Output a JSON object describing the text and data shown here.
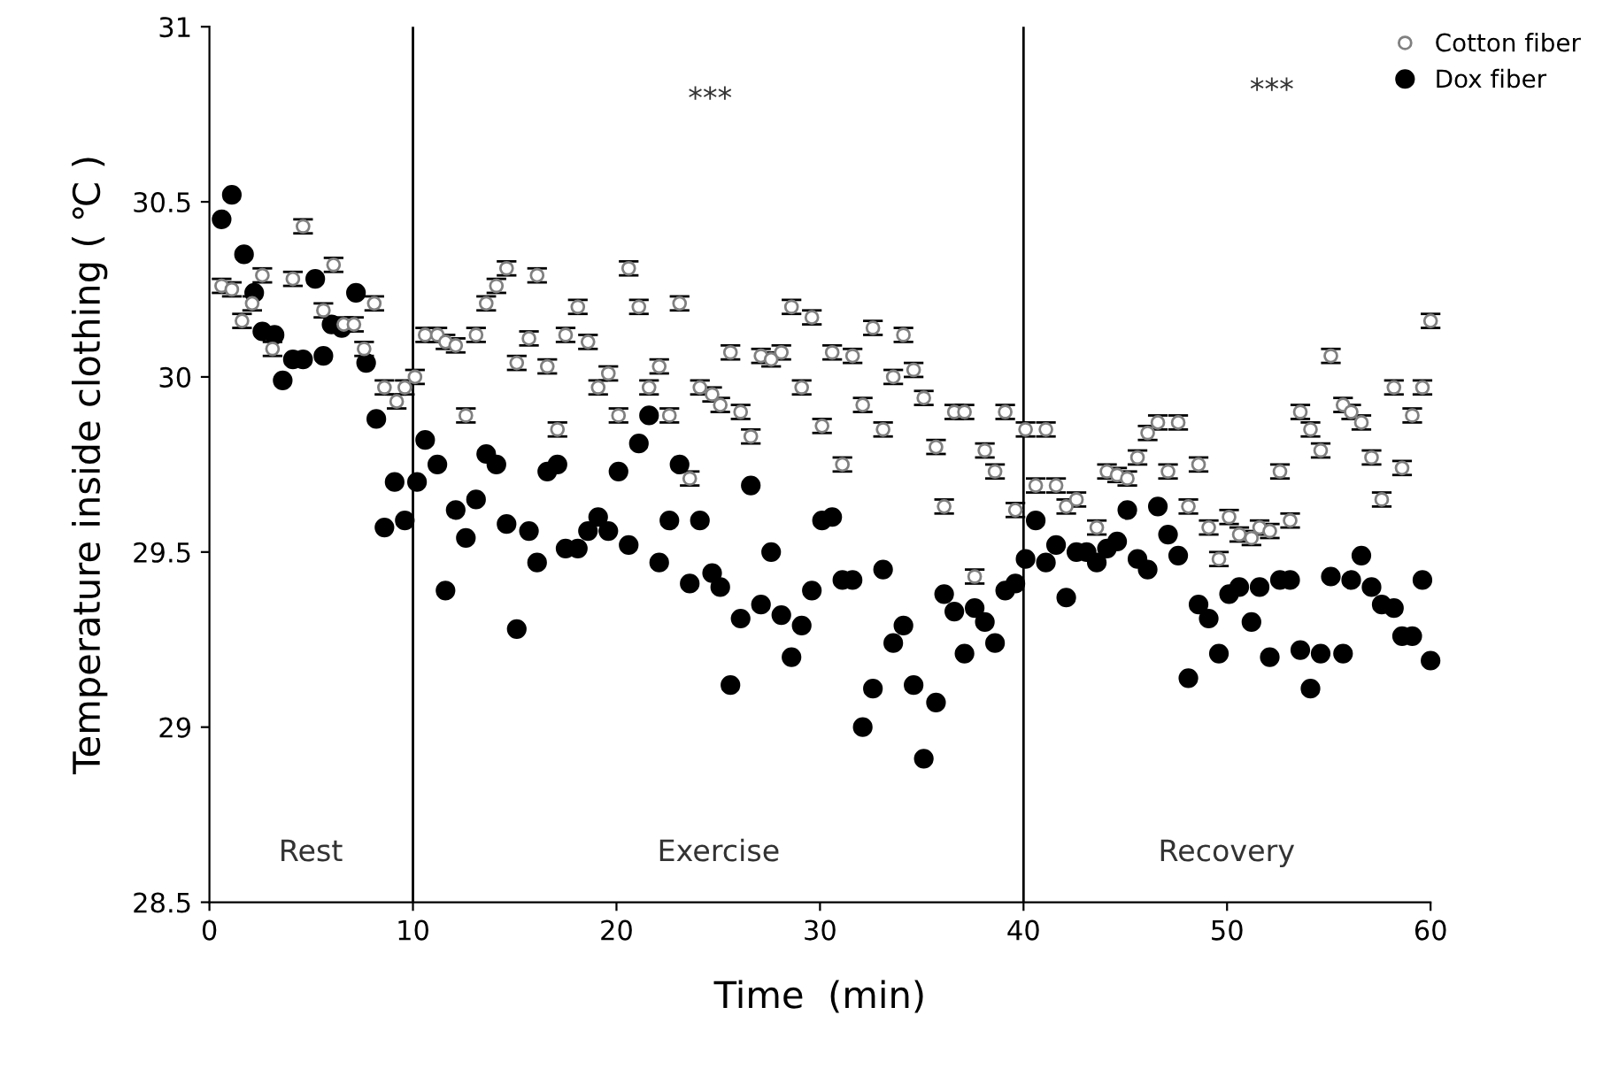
{
  "chart_data": {
    "type": "scatter",
    "xlabel": "Time  (min)",
    "ylabel": "Temperature inside clothing ( ℃ )",
    "xlim": [
      0,
      60
    ],
    "xticks": [
      0,
      10,
      20,
      30,
      40,
      50,
      60
    ],
    "ylim": [
      28.5,
      31
    ],
    "yticks": [
      28.5,
      29,
      29.5,
      30,
      30.5,
      31
    ],
    "grid": false,
    "legend": "top right",
    "marker": "circle",
    "ref_lines": [
      {
        "axis": "x",
        "value": 10,
        "color": "#000000"
      },
      {
        "axis": "x",
        "value": 40,
        "color": "#000000"
      }
    ],
    "annotations": [
      "Rest",
      "Exercise",
      "Recovery",
      "***",
      "***"
    ],
    "series": [
      {
        "name": "Cotton fiber",
        "color": "#808080",
        "x": [
          0.6,
          1.1,
          1.6,
          2.1,
          2.6,
          3.1,
          4.1,
          4.6,
          5.6,
          6.1,
          6.6,
          7.1,
          7.6,
          8.1,
          8.6,
          9.2,
          9.6,
          10.1,
          10.6,
          11.2,
          11.6,
          12.1,
          12.6,
          13.1,
          13.6,
          14.1,
          14.6,
          15.1,
          15.7,
          16.1,
          16.6,
          17.1,
          17.5,
          18.1,
          18.6,
          19.1,
          19.6,
          20.1,
          20.6,
          21.1,
          21.6,
          22.1,
          22.6,
          23.1,
          23.6,
          24.1,
          24.7,
          25.1,
          25.6,
          26.1,
          26.6,
          27.1,
          27.6,
          28.1,
          28.6,
          29.1,
          29.6,
          30.1,
          30.6,
          31.1,
          31.6,
          32.1,
          32.6,
          33.1,
          33.6,
          34.1,
          34.6,
          35.1,
          35.7,
          36.1,
          36.6,
          37.1,
          37.6,
          38.1,
          38.6,
          39.1,
          39.6,
          40.1,
          40.6,
          41.1,
          41.6,
          42.1,
          42.6,
          43.6,
          44.1,
          44.6,
          45.1,
          45.6,
          46.1,
          46.6,
          47.1,
          47.6,
          48.1,
          48.6,
          49.1,
          49.6,
          50.1,
          50.6,
          51.2,
          51.6,
          52.1,
          52.6,
          53.1,
          53.6,
          54.1,
          54.6,
          55.1,
          55.7,
          56.1,
          56.6,
          57.1,
          57.6,
          58.2,
          58.6,
          59.1,
          59.6,
          60.0
        ],
        "values": [
          30.26,
          30.25,
          30.16,
          30.21,
          30.29,
          30.08,
          30.28,
          30.43,
          30.19,
          30.32,
          30.15,
          30.15,
          30.08,
          30.21,
          29.97,
          29.93,
          29.97,
          30.0,
          30.12,
          30.12,
          30.1,
          30.09,
          29.89,
          30.12,
          30.21,
          30.26,
          30.31,
          30.04,
          30.11,
          30.29,
          30.03,
          29.85,
          30.12,
          30.2,
          30.1,
          29.97,
          30.01,
          29.89,
          30.31,
          30.2,
          29.97,
          30.03,
          29.89,
          30.21,
          29.71,
          29.97,
          29.95,
          29.92,
          30.07,
          29.9,
          29.83,
          30.06,
          30.05,
          30.07,
          30.2,
          29.97,
          30.17,
          29.86,
          30.07,
          29.75,
          30.06,
          29.92,
          30.14,
          29.85,
          30.0,
          30.12,
          30.02,
          29.94,
          29.8,
          29.63,
          29.9,
          29.9,
          29.43,
          29.79,
          29.73,
          29.9,
          29.62,
          29.85,
          29.69,
          29.85,
          29.69,
          29.63,
          29.65,
          29.57,
          29.73,
          29.72,
          29.71,
          29.77,
          29.84,
          29.87,
          29.73,
          29.87,
          29.63,
          29.75,
          29.57,
          29.48,
          29.6,
          29.55,
          29.54,
          29.57,
          29.56,
          29.73,
          29.59,
          29.9,
          29.85,
          29.79,
          30.06,
          29.92,
          29.9,
          29.87,
          29.77,
          29.65,
          29.97,
          29.74,
          29.89,
          29.97,
          30.16
        ],
        "errors": [
          0.02,
          0.02,
          0.02,
          0.02,
          0.02,
          0.02,
          0.02,
          0.02,
          0.02,
          0.02,
          0.02,
          0.02,
          0.02,
          0.02,
          0.02,
          0.02,
          0.02,
          0.02,
          0.02,
          0.02,
          0.02,
          0.02,
          0.02,
          0.02,
          0.02,
          0.02,
          0.02,
          0.02,
          0.02,
          0.02,
          0.02,
          0.02,
          0.02,
          0.02,
          0.02,
          0.02,
          0.02,
          0.02,
          0.02,
          0.02,
          0.02,
          0.02,
          0.02,
          0.02,
          0.02,
          0.02,
          0.02,
          0.02,
          0.02,
          0.02,
          0.02,
          0.02,
          0.02,
          0.02,
          0.02,
          0.02,
          0.02,
          0.02,
          0.02,
          0.02,
          0.02,
          0.02,
          0.02,
          0.02,
          0.02,
          0.02,
          0.02,
          0.02,
          0.02,
          0.02,
          0.02,
          0.02,
          0.02,
          0.02,
          0.02,
          0.02,
          0.02,
          0.02,
          0.02,
          0.02,
          0.02,
          0.02,
          0.02,
          0.02,
          0.02,
          0.02,
          0.02,
          0.02,
          0.02,
          0.02,
          0.02,
          0.02,
          0.02,
          0.02,
          0.02,
          0.02,
          0.02,
          0.02,
          0.02,
          0.02,
          0.02,
          0.02,
          0.02,
          0.02,
          0.02,
          0.02,
          0.02,
          0.02,
          0.02,
          0.02,
          0.02,
          0.02,
          0.02,
          0.02,
          0.02,
          0.02,
          0.02
        ]
      },
      {
        "name": "Dox fiber",
        "color": "#000000",
        "x": [
          0.6,
          1.1,
          1.7,
          2.2,
          2.6,
          3.2,
          3.6,
          4.1,
          4.6,
          5.2,
          5.6,
          6.0,
          6.5,
          7.2,
          7.7,
          8.2,
          8.6,
          9.1,
          9.6,
          10.2,
          10.6,
          11.2,
          11.6,
          12.1,
          12.6,
          13.1,
          13.6,
          14.1,
          14.6,
          15.1,
          15.7,
          16.1,
          16.6,
          17.1,
          17.5,
          18.1,
          18.6,
          19.1,
          19.6,
          20.1,
          20.6,
          21.1,
          21.6,
          22.1,
          22.6,
          23.1,
          23.6,
          24.1,
          24.7,
          25.1,
          25.6,
          26.1,
          26.6,
          27.1,
          27.6,
          28.1,
          28.6,
          29.1,
          29.6,
          30.1,
          30.6,
          31.1,
          31.6,
          32.1,
          32.6,
          33.1,
          33.6,
          34.1,
          34.6,
          35.1,
          35.7,
          36.1,
          36.6,
          37.1,
          37.6,
          38.1,
          38.6,
          39.1,
          39.6,
          40.1,
          40.6,
          41.1,
          41.6,
          42.1,
          42.6,
          43.1,
          43.6,
          44.1,
          44.6,
          45.1,
          45.6,
          46.1,
          46.6,
          47.1,
          47.6,
          48.1,
          48.6,
          49.1,
          49.6,
          50.1,
          50.6,
          51.2,
          51.6,
          52.1,
          52.6,
          53.1,
          53.6,
          54.1,
          54.6,
          55.1,
          55.7,
          56.1,
          56.6,
          57.1,
          57.6,
          58.2,
          58.6,
          59.1,
          59.6,
          60.0
        ],
        "values": [
          30.45,
          30.52,
          30.35,
          30.24,
          30.13,
          30.12,
          29.99,
          30.05,
          30.05,
          30.28,
          30.06,
          30.15,
          30.14,
          30.24,
          30.04,
          29.88,
          29.57,
          29.7,
          29.59,
          29.7,
          29.82,
          29.75,
          29.39,
          29.62,
          29.54,
          29.65,
          29.78,
          29.75,
          29.58,
          29.28,
          29.56,
          29.47,
          29.73,
          29.75,
          29.51,
          29.51,
          29.56,
          29.6,
          29.56,
          29.73,
          29.52,
          29.81,
          29.89,
          29.47,
          29.59,
          29.75,
          29.41,
          29.59,
          29.44,
          29.4,
          29.12,
          29.31,
          29.69,
          29.35,
          29.5,
          29.32,
          29.2,
          29.29,
          29.39,
          29.59,
          29.6,
          29.42,
          29.42,
          29.0,
          29.11,
          29.45,
          29.24,
          29.29,
          29.12,
          28.91,
          29.07,
          29.38,
          29.33,
          29.21,
          29.34,
          29.3,
          29.24,
          29.39,
          29.41,
          29.48,
          29.59,
          29.47,
          29.52,
          29.37,
          29.5,
          29.5,
          29.47,
          29.51,
          29.53,
          29.62,
          29.48,
          29.45,
          29.63,
          29.55,
          29.49,
          29.14,
          29.35,
          29.31,
          29.21,
          29.38,
          29.4,
          29.3,
          29.4,
          29.2,
          29.42,
          29.42,
          29.22,
          29.11,
          29.21,
          29.43,
          29.21,
          29.42,
          29.49,
          29.4,
          29.35,
          29.34,
          29.26,
          29.26,
          29.42,
          29.19
        ]
      }
    ]
  }
}
